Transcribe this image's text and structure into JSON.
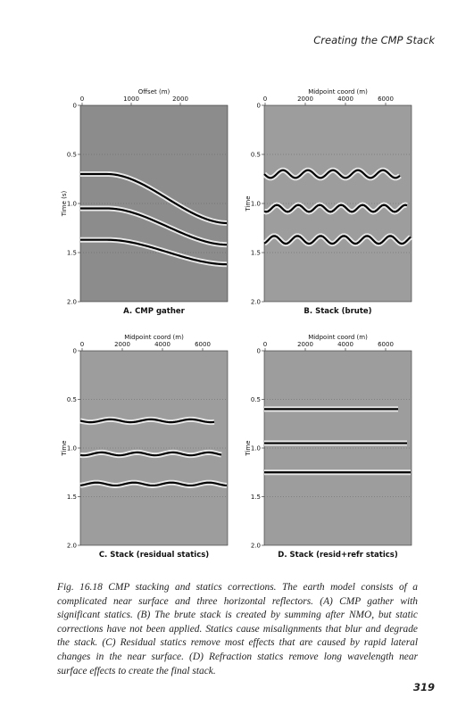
{
  "header": {
    "title": "Creating the CMP Stack"
  },
  "panels": [
    {
      "x_label": "Offset (m)",
      "xticks": [
        "0",
        "1000",
        "2000"
      ],
      "y_label": "Time (s)",
      "yticks": [
        "0",
        "0.5",
        "1.0",
        "1.5",
        "2.0"
      ],
      "caption": "A. CMP gather"
    },
    {
      "x_label": "Midpoint coord (m)",
      "xticks": [
        "0",
        "2000",
        "4000",
        "6000"
      ],
      "y_label": "Time",
      "yticks": [
        "0",
        "0.5",
        "1.0",
        "1.5",
        "2.0"
      ],
      "caption": "B. Stack (brute)"
    },
    {
      "x_label": "Midpoint coord (m)",
      "xticks": [
        "0",
        "2000",
        "4000",
        "6000"
      ],
      "y_label": "Time",
      "yticks": [
        "0",
        "0.5",
        "1.0",
        "1.5",
        "2.0"
      ],
      "caption": "C. Stack (residual statics)"
    },
    {
      "x_label": "Midpoint coord (m)",
      "xticks": [
        "0",
        "2000",
        "4000",
        "6000"
      ],
      "y_label": "Time",
      "yticks": [
        "0",
        "0.5",
        "1.0",
        "1.5",
        "2.0"
      ],
      "caption": "D. Stack (resid+refr statics)"
    }
  ],
  "figure_caption": "Fig. 16.18 CMP stacking and statics corrections. The earth model consists of a complicated near surface and three horizontal reflectors. (A) CMP gather with significant statics. (B) The brute stack is created by summing after NMO, but static corrections have not been applied. Statics cause misalignments that blur and degrade the stack. (C) Residual statics remove most effects that are caused by rapid lateral changes in the near surface. (D) Refraction statics remove long wavelength near surface effects to create the final stack.",
  "page_number": "319"
}
